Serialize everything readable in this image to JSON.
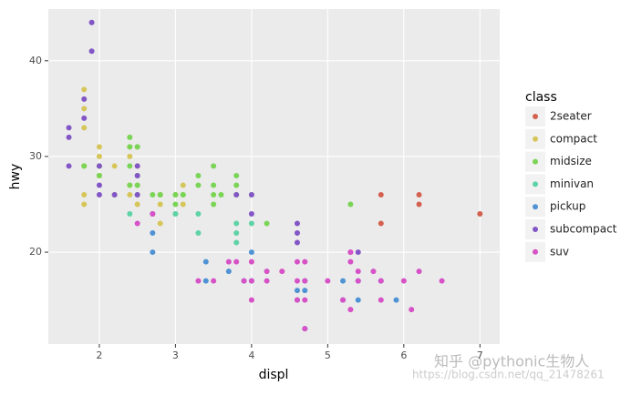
{
  "chart_data": {
    "type": "scatter",
    "x_label": "displ",
    "y_label": "hwy",
    "legend_title": "class",
    "legend_position": "right",
    "grid": true,
    "xlim": [
      1.33,
      7.26
    ],
    "ylim": [
      10.4,
      45.4
    ],
    "xticks": [
      2,
      3,
      4,
      5,
      6,
      7
    ],
    "yticks": [
      20,
      30,
      40
    ],
    "series": [
      {
        "name": "2seater",
        "color": "#d4614f",
        "x": [
          5.7,
          5.7,
          6.2,
          6.2,
          7.0
        ],
        "values": [
          26,
          23,
          26,
          25,
          24
        ]
      },
      {
        "name": "compact",
        "color": "#d6c65a",
        "x": [
          1.8,
          1.8,
          2.0,
          2.0,
          2.8,
          2.8,
          3.1,
          1.8,
          1.8,
          2.0,
          2.0,
          2.8,
          3.1,
          2.2,
          2.2,
          2.4,
          2.4,
          2.5,
          2.5,
          1.8,
          1.8,
          2.0,
          2.4,
          2.8,
          1.8,
          3.0,
          2.5,
          2.4,
          2.0,
          2.5
        ],
        "values": [
          29,
          29,
          31,
          30,
          26,
          26,
          27,
          26,
          25,
          28,
          28,
          25,
          25,
          26,
          29,
          31,
          30,
          27,
          25,
          37,
          35,
          29,
          27,
          23,
          33,
          26,
          29,
          26,
          28,
          31
        ]
      },
      {
        "name": "midsize",
        "color": "#7ad455",
        "x": [
          2.4,
          2.4,
          3.1,
          3.5,
          3.6,
          2.5,
          2.5,
          2.8,
          3.1,
          3.3,
          3.0,
          3.5,
          3.8,
          3.8,
          4.2,
          5.3,
          1.8,
          2.0,
          2.7,
          2.4,
          2.4,
          2.5,
          3.5,
          2.5,
          3.5,
          3.0,
          3.3,
          3.8,
          4.0,
          3.0,
          2.0
        ],
        "values": [
          29,
          27,
          26,
          29,
          26,
          28,
          27,
          26,
          26,
          28,
          26,
          26,
          28,
          26,
          23,
          25,
          29,
          28,
          26,
          32,
          31,
          31,
          27,
          26,
          25,
          24,
          27,
          27,
          26,
          25,
          29
        ]
      },
      {
        "name": "minivan",
        "color": "#5fd3a6",
        "x": [
          2.4,
          3.0,
          3.3,
          3.3,
          3.8,
          3.8,
          3.8,
          4.0
        ],
        "values": [
          24,
          24,
          22,
          24,
          22,
          21,
          23,
          23
        ]
      },
      {
        "name": "pickup",
        "color": "#4f93d4",
        "x": [
          2.7,
          2.7,
          3.4,
          3.4,
          3.7,
          3.9,
          4.7,
          4.7,
          4.7,
          5.2,
          5.2,
          5.7,
          5.9,
          4.0,
          4.0,
          4.6,
          5.4,
          5.4,
          4.6
        ],
        "values": [
          20,
          22,
          19,
          17,
          18,
          17,
          17,
          16,
          12,
          17,
          15,
          17,
          15,
          20,
          17,
          16,
          17,
          15,
          15
        ]
      },
      {
        "name": "subcompact",
        "color": "#8256c6",
        "x": [
          1.6,
          1.6,
          1.6,
          1.8,
          1.8,
          1.9,
          1.9,
          2.0,
          2.0,
          2.0,
          2.5,
          2.5,
          2.7,
          2.2,
          3.8,
          4.0,
          4.0,
          4.6,
          4.6,
          4.6,
          5.4,
          2.5
        ],
        "values": [
          33,
          32,
          29,
          34,
          36,
          44,
          41,
          29,
          27,
          26,
          28,
          29,
          24,
          26,
          26,
          26,
          24,
          23,
          22,
          21,
          20,
          26
        ]
      },
      {
        "name": "suv",
        "color": "#d652c6",
        "x": [
          3.3,
          3.8,
          4.0,
          4.7,
          4.7,
          5.7,
          6.1,
          4.0,
          4.0,
          4.6,
          5.4,
          5.4,
          4.2,
          4.4,
          4.7,
          5.2,
          5.3,
          5.6,
          6.5,
          3.9,
          4.6,
          5.0,
          4.6,
          2.5,
          6.2,
          2.7,
          3.5,
          3.7,
          4.2,
          4.7,
          5.7,
          6.0,
          5.3,
          5.3,
          5.3
        ],
        "values": [
          17,
          19,
          17,
          19,
          12,
          17,
          14,
          15,
          19,
          17,
          18,
          17,
          18,
          18,
          17,
          15,
          19,
          18,
          17,
          17,
          19,
          17,
          15,
          23,
          18,
          24,
          17,
          19,
          17,
          15,
          15,
          17,
          14,
          20,
          20
        ]
      }
    ],
    "watermark": [
      "知乎 @pythonic生物人",
      "https://blog.csdn.net/qq_21478261"
    ]
  }
}
